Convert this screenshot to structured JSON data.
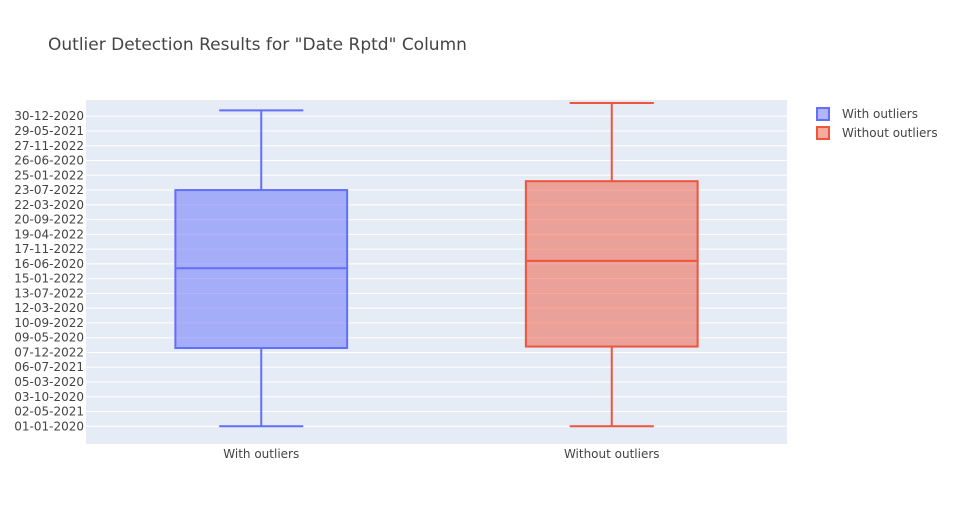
{
  "chart_data": {
    "type": "box",
    "title": "Outlier Detection Results for \"Date Rptd\" Column",
    "xlabel": "",
    "ylabel": "",
    "categories": [
      "With outliers",
      "Without outliers"
    ],
    "y_tick_labels": [
      "01-01-2020",
      "02-05-2021",
      "03-10-2020",
      "05-03-2020",
      "06-07-2021",
      "07-12-2022",
      "09-05-2020",
      "10-09-2022",
      "12-03-2020",
      "13-07-2022",
      "15-01-2022",
      "16-06-2020",
      "17-11-2022",
      "19-04-2022",
      "20-09-2022",
      "22-03-2020",
      "23-07-2022",
      "25-01-2022",
      "26-06-2020",
      "27-11-2022",
      "29-05-2021",
      "30-12-2020"
    ],
    "ylim": [
      -1.2,
      22.1
    ],
    "series": [
      {
        "name": "With outliers",
        "color": "#636efa",
        "min": 0,
        "q1": 5.3,
        "median": 10.7,
        "q3": 16.0,
        "max": 21.4
      },
      {
        "name": "Without outliers",
        "color": "#ef553b",
        "min": 0,
        "q1": 5.4,
        "median": 11.2,
        "q3": 16.6,
        "max": 21.9
      }
    ],
    "legend": {
      "position": "top-right",
      "entries": [
        "With outliers",
        "Without outliers"
      ]
    },
    "grid": true,
    "plot_background": "#e5ecf6"
  }
}
